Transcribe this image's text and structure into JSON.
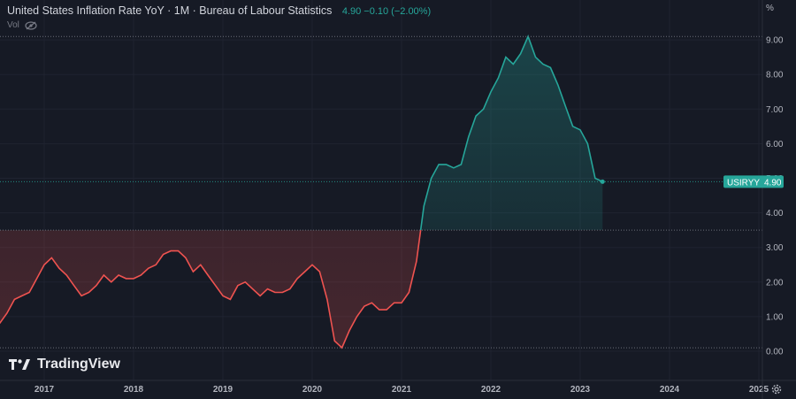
{
  "header": {
    "title": "United States Inflation Rate YoY · 1M · Bureau of Labour Statistics",
    "values": "4.90  −0.10 (−2.00%)",
    "vol_label": "Vol"
  },
  "axis_unit": "%",
  "brand": "TradingView",
  "price_tag": {
    "symbol": "USIRYY",
    "value": "4.90"
  },
  "colors": {
    "up": "#26a69a",
    "down": "#ef5350",
    "background": "#161a25",
    "grid": "#1f2330",
    "text": "#b2b5be"
  },
  "chart_data": {
    "type": "area",
    "title": "United States Inflation Rate YoY",
    "baseline": 3.5,
    "ylim": [
      0,
      9
    ],
    "y_ticks": [
      "0.00",
      "1.00",
      "2.00",
      "3.00",
      "4.00",
      "5.00",
      "6.00",
      "7.00",
      "8.00",
      "9.00"
    ],
    "x_ticks": [
      {
        "label": "2017",
        "t": 2017.0
      },
      {
        "label": "2018",
        "t": 2018.0
      },
      {
        "label": "2019",
        "t": 2019.0
      },
      {
        "label": "2020",
        "t": 2020.0
      },
      {
        "label": "2021",
        "t": 2021.0
      },
      {
        "label": "2022",
        "t": 2022.0
      },
      {
        "label": "2023",
        "t": 2023.0
      },
      {
        "label": "2024",
        "t": 2024.0
      },
      {
        "label": "2025",
        "t": 2025.0
      }
    ],
    "series": [
      {
        "values": [
          [
            2016.5,
            0.8
          ],
          [
            2016.583,
            1.1
          ],
          [
            2016.667,
            1.5
          ],
          [
            2016.75,
            1.6
          ],
          [
            2016.833,
            1.7
          ],
          [
            2016.917,
            2.1
          ],
          [
            2017.0,
            2.5
          ],
          [
            2017.083,
            2.7
          ],
          [
            2017.167,
            2.4
          ],
          [
            2017.25,
            2.2
          ],
          [
            2017.333,
            1.9
          ],
          [
            2017.417,
            1.6
          ],
          [
            2017.5,
            1.7
          ],
          [
            2017.583,
            1.9
          ],
          [
            2017.667,
            2.2
          ],
          [
            2017.75,
            2.0
          ],
          [
            2017.833,
            2.2
          ],
          [
            2017.917,
            2.1
          ],
          [
            2018.0,
            2.1
          ],
          [
            2018.083,
            2.2
          ],
          [
            2018.167,
            2.4
          ],
          [
            2018.25,
            2.5
          ],
          [
            2018.333,
            2.8
          ],
          [
            2018.417,
            2.9
          ],
          [
            2018.5,
            2.9
          ],
          [
            2018.583,
            2.7
          ],
          [
            2018.667,
            2.3
          ],
          [
            2018.75,
            2.5
          ],
          [
            2018.833,
            2.2
          ],
          [
            2018.917,
            1.9
          ],
          [
            2019.0,
            1.6
          ],
          [
            2019.083,
            1.5
          ],
          [
            2019.167,
            1.9
          ],
          [
            2019.25,
            2.0
          ],
          [
            2019.333,
            1.8
          ],
          [
            2019.417,
            1.6
          ],
          [
            2019.5,
            1.8
          ],
          [
            2019.583,
            1.7
          ],
          [
            2019.667,
            1.7
          ],
          [
            2019.75,
            1.8
          ],
          [
            2019.833,
            2.1
          ],
          [
            2019.917,
            2.3
          ],
          [
            2020.0,
            2.5
          ],
          [
            2020.083,
            2.3
          ],
          [
            2020.167,
            1.5
          ],
          [
            2020.25,
            0.3
          ],
          [
            2020.333,
            0.1
          ],
          [
            2020.417,
            0.6
          ],
          [
            2020.5,
            1.0
          ],
          [
            2020.583,
            1.3
          ],
          [
            2020.667,
            1.4
          ],
          [
            2020.75,
            1.2
          ],
          [
            2020.833,
            1.2
          ],
          [
            2020.917,
            1.4
          ],
          [
            2021.0,
            1.4
          ],
          [
            2021.083,
            1.7
          ],
          [
            2021.167,
            2.6
          ],
          [
            2021.25,
            4.2
          ],
          [
            2021.333,
            5.0
          ],
          [
            2021.417,
            5.4
          ],
          [
            2021.5,
            5.4
          ],
          [
            2021.583,
            5.3
          ],
          [
            2021.667,
            5.4
          ],
          [
            2021.75,
            6.2
          ],
          [
            2021.833,
            6.8
          ],
          [
            2021.917,
            7.0
          ],
          [
            2022.0,
            7.5
          ],
          [
            2022.083,
            7.9
          ],
          [
            2022.167,
            8.5
          ],
          [
            2022.25,
            8.3
          ],
          [
            2022.333,
            8.6
          ],
          [
            2022.417,
            9.1
          ],
          [
            2022.5,
            8.5
          ],
          [
            2022.583,
            8.3
          ],
          [
            2022.667,
            8.2
          ],
          [
            2022.75,
            7.7
          ],
          [
            2022.833,
            7.1
          ],
          [
            2022.917,
            6.5
          ],
          [
            2023.0,
            6.4
          ],
          [
            2023.083,
            6.0
          ],
          [
            2023.167,
            5.0
          ],
          [
            2023.25,
            4.9
          ]
        ]
      }
    ]
  }
}
